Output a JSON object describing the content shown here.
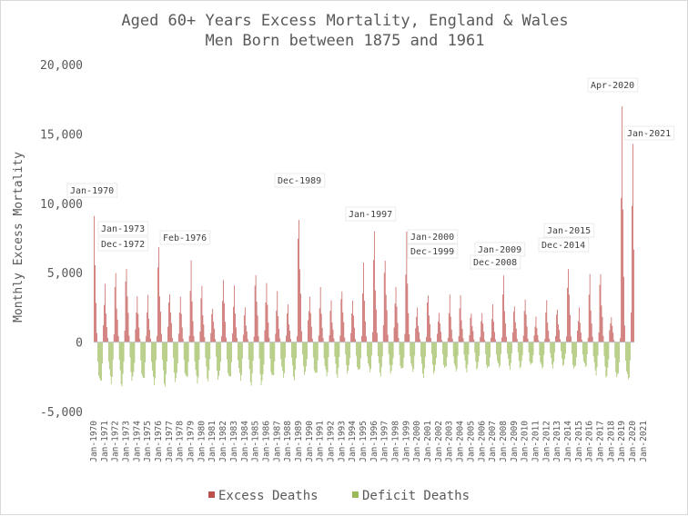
{
  "chart_data": {
    "type": "bar",
    "title": "Aged 60+ Years Excess Mortality, England & Wales",
    "subtitle": "Men Born between 1875 and 1961",
    "xlabel": "",
    "ylabel": "Monthly Excess Mortality",
    "ylim": [
      -5000,
      20000
    ],
    "yticks": [
      -5000,
      0,
      5000,
      10000,
      15000,
      20000
    ],
    "ytick_labels": [
      "-5,000",
      "0",
      "5,000",
      "10,000",
      "15,000",
      "20,000"
    ],
    "x_range": [
      "Jan-1970",
      "Feb-2021"
    ],
    "x_tick_labels": [
      "Jan-1970",
      "Jan-1971",
      "Jan-1972",
      "Jan-1973",
      "Jan-1974",
      "Jan-1975",
      "Jan-1976",
      "Jan-1977",
      "Jan-1978",
      "Jan-1979",
      "Jan-1980",
      "Jan-1981",
      "Jan-1982",
      "Jan-1983",
      "Jan-1984",
      "Jan-1985",
      "Jan-1986",
      "Jan-1987",
      "Jan-1988",
      "Jan-1989",
      "Jan-1990",
      "Jan-1991",
      "Jan-1992",
      "Jan-1993",
      "Jan-1994",
      "Jan-1995",
      "Jan-1996",
      "Jan-1997",
      "Jan-1998",
      "Jan-1999",
      "Jan-2000",
      "Jan-2001",
      "Jan-2002",
      "Jan-2003",
      "Jan-2004",
      "Jan-2005",
      "Jan-2006",
      "Jan-2007",
      "Jan-2008",
      "Jan-2009",
      "Jan-2010",
      "Jan-2011",
      "Jan-2012",
      "Jan-2013",
      "Jan-2014",
      "Jan-2015",
      "Jan-2016",
      "Jan-2017",
      "Jan-2018",
      "Jan-2019",
      "Jan-2020",
      "Jan-2021"
    ],
    "grid": false,
    "legend_position": "bottom",
    "series": [
      {
        "name": "Excess Deaths",
        "color": "#c0504d"
      },
      {
        "name": "Deficit Deaths",
        "color": "#9bbb59"
      }
    ],
    "winter_peaks": [
      10100,
      4200,
      5500,
      6600,
      3700,
      3400,
      7500,
      4300,
      3700,
      5900,
      4400,
      3000,
      5100,
      4100,
      2700,
      6000,
      4900,
      3700,
      2900,
      10900,
      3800,
      4000,
      3200,
      4500,
      3500,
      5800,
      8400,
      7200,
      4700,
      8100,
      2600,
      4100,
      2500,
      3500,
      3500,
      2500,
      2500,
      2800,
      4950,
      3100,
      3700,
      1900,
      3100,
      2800,
      6400,
      2600,
      5000,
      5800,
      2200,
      17800,
      14500
    ],
    "summer_troughs": [
      -3300,
      -3100,
      -3300,
      -3000,
      -3100,
      -3200,
      -3300,
      -3100,
      -3000,
      -3100,
      -2900,
      -2900,
      -3000,
      -2900,
      -3200,
      -3300,
      -2900,
      -2700,
      -2800,
      -2500,
      -2700,
      -2600,
      -2600,
      -2400,
      -2400,
      -2300,
      -2500,
      -2400,
      -2300,
      -2300,
      -2600,
      -2400,
      -2200,
      -2300,
      -2200,
      -2100,
      -2200,
      -2000,
      -2000,
      -2000,
      -1900,
      -2100,
      -1900,
      -1800,
      -2200,
      -2000,
      -2400,
      -2700,
      -2900,
      -3000,
      -3800
    ],
    "annotations": [
      {
        "label": "Jan-1970",
        "value": 10100
      },
      {
        "label": "Jan-1973",
        "value": 6600
      },
      {
        "label": "Dec-1972",
        "value": 5900
      },
      {
        "label": "Feb-1976",
        "value": 7500
      },
      {
        "label": "Dec-1989",
        "value": 10900
      },
      {
        "label": "Jan-1997",
        "value": 8400
      },
      {
        "label": "Jan-2000",
        "value": 8100
      },
      {
        "label": "Dec-1999",
        "value": 7500
      },
      {
        "label": "Jan-2009",
        "value": 4950
      },
      {
        "label": "Dec-2008",
        "value": 4900
      },
      {
        "label": "Jan-2015",
        "value": 6400
      },
      {
        "label": "Dec-2014",
        "value": 5700
      },
      {
        "label": "Apr-2020",
        "value": 17800
      },
      {
        "label": "Jan-2021",
        "value": 14500
      }
    ]
  }
}
